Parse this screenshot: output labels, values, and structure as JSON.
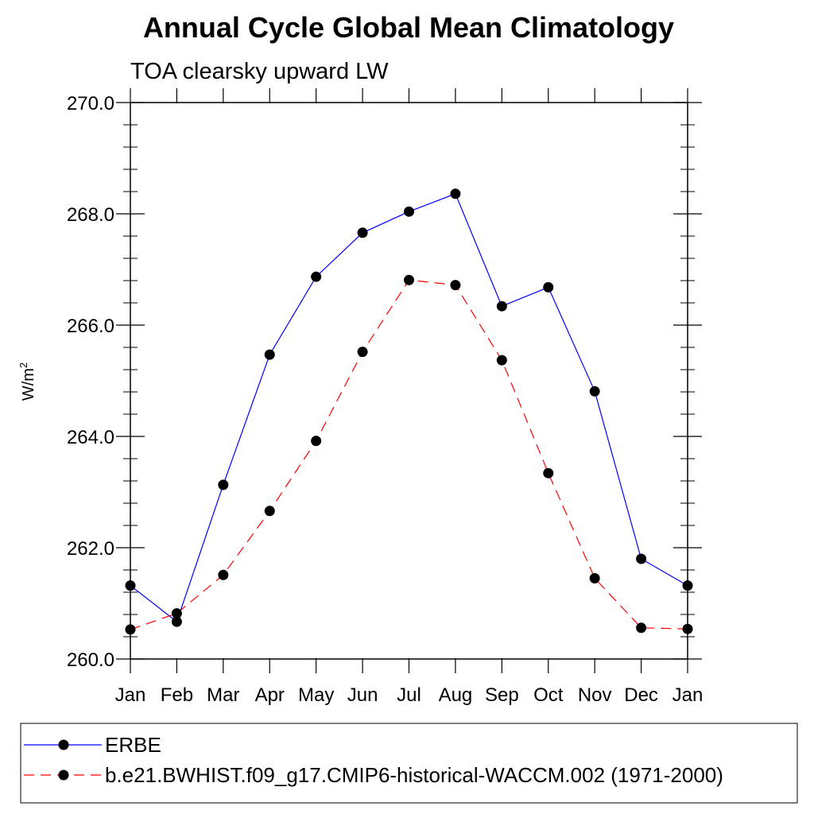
{
  "chart_data": {
    "type": "line",
    "title": "Annual Cycle Global Mean Climatology",
    "subtitle": "TOA clearsky upward LW",
    "ylabel": "W/m",
    "ylabel_superscript": "2",
    "xlabel": "",
    "categories": [
      "Jan",
      "Feb",
      "Mar",
      "Apr",
      "May",
      "Jun",
      "Jul",
      "Aug",
      "Sep",
      "Oct",
      "Nov",
      "Dec",
      "Jan"
    ],
    "ylim": [
      260.0,
      270.0
    ],
    "yticks": [
      "260.0",
      "262.0",
      "264.0",
      "266.0",
      "268.0",
      "270.0"
    ],
    "series": [
      {
        "name": "ERBE",
        "color": "#0000ff",
        "dash": "solid",
        "values": [
          261.32,
          260.67,
          263.13,
          265.47,
          266.87,
          267.66,
          268.04,
          268.36,
          266.34,
          266.68,
          264.81,
          261.8,
          261.32
        ]
      },
      {
        "name": "b.e21.BWHIST.f09_g17.CMIP6-historical-WACCM.002 (1971-2000)",
        "color": "#ff0000",
        "dash": "dashed",
        "values": [
          260.53,
          260.82,
          261.51,
          262.66,
          263.92,
          265.52,
          266.81,
          266.72,
          265.37,
          263.34,
          261.45,
          260.56,
          260.54
        ]
      }
    ],
    "legend_placement": "bottom"
  }
}
